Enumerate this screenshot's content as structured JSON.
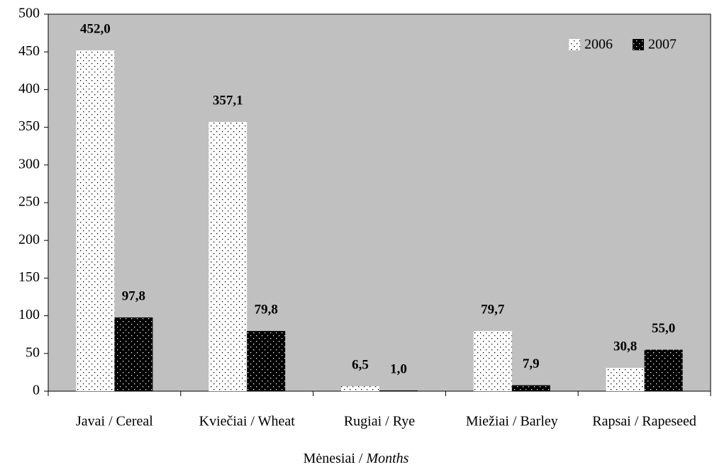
{
  "chart_data": {
    "type": "bar",
    "categories": [
      "Javai / Cereal",
      "Kviečiai / Wheat",
      "Rugiai / Rye",
      "Miežiai / Barley",
      "Rapsai / Rapeseed"
    ],
    "series": [
      {
        "name": "2006",
        "color": "#ffffff",
        "values": [
          452.0,
          357.1,
          6.5,
          79.7,
          30.8
        ],
        "value_labels": [
          "452,0",
          "357,1",
          "6,5",
          "79,7",
          "30,8"
        ]
      },
      {
        "name": "2007",
        "color": "#000000",
        "values": [
          97.8,
          79.8,
          1.0,
          7.9,
          55.0
        ],
        "value_labels": [
          "97,8",
          "79,8",
          "1,0",
          "7,9",
          "55,0"
        ]
      }
    ],
    "xlabel": [
      "Mėnesiai / ",
      "Months"
    ],
    "ylim": [
      0,
      500
    ],
    "yticks": [
      0,
      50,
      100,
      150,
      200,
      250,
      300,
      350,
      400,
      450,
      500
    ],
    "grid": false,
    "legend": "upper right",
    "background": "#c0c0c0"
  }
}
